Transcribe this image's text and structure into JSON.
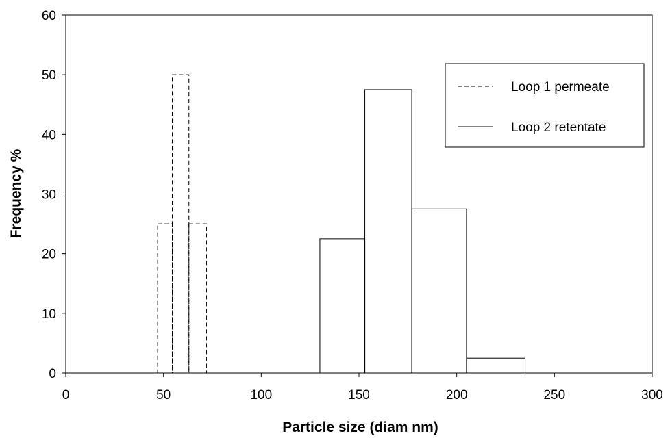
{
  "chart_data": {
    "type": "bar",
    "title": "",
    "xlabel": "Particle size (diam nm)",
    "ylabel": "Frequency %",
    "xlim": [
      0,
      300
    ],
    "ylim": [
      0,
      60
    ],
    "x_ticks": [
      "0",
      "50",
      "100",
      "150",
      "200",
      "250",
      "300"
    ],
    "y_ticks": [
      "0",
      "10",
      "20",
      "30",
      "40",
      "50",
      "60"
    ],
    "grid": false,
    "legend_position": "top-right",
    "series": [
      {
        "name": "Loop 1 permeate",
        "style": "dashed",
        "bins": [
          {
            "x0": 47,
            "x1": 54.5,
            "value": 25
          },
          {
            "x0": 54.5,
            "x1": 63,
            "value": 50
          },
          {
            "x0": 63,
            "x1": 72,
            "value": 25
          }
        ]
      },
      {
        "name": "Loop 2 retentate",
        "style": "solid",
        "bins": [
          {
            "x0": 130,
            "x1": 153,
            "value": 22.5
          },
          {
            "x0": 153,
            "x1": 177,
            "value": 47.5
          },
          {
            "x0": 177,
            "x1": 205,
            "value": 27.5
          },
          {
            "x0": 205,
            "x1": 235,
            "value": 2.5
          }
        ]
      }
    ]
  },
  "colors": {
    "axis": "#000000",
    "series_stroke": "#000000"
  }
}
